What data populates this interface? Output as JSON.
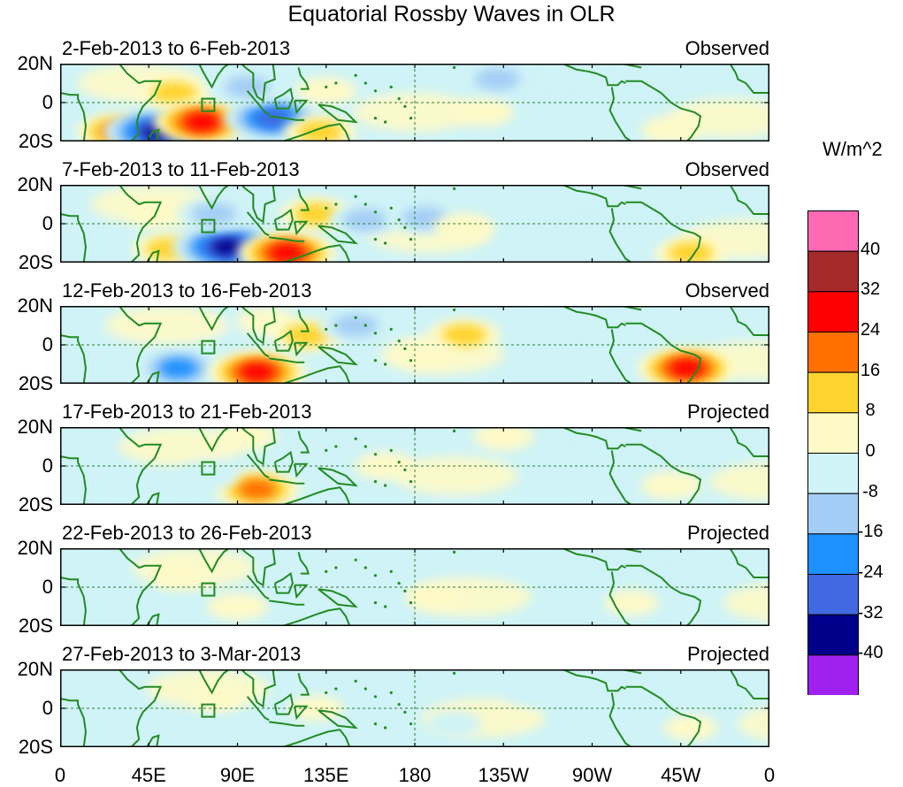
{
  "chart_data": {
    "type": "heatmap",
    "title": "Equatorial Rossby Waves in OLR",
    "colorbar_label": "W/m^2",
    "colorbar": {
      "levels": [
        -40,
        -32,
        -24,
        -16,
        -8,
        0,
        8,
        16,
        24,
        32,
        40
      ],
      "colors": [
        "#a020f0",
        "#00008b",
        "#4169e1",
        "#1e90ff",
        "#a4cdf5",
        "#cff3f7",
        "#fefac8",
        "#ffd42e",
        "#ff7000",
        "#ff0000",
        "#a52a2a",
        "#ff69b4"
      ]
    },
    "x_ticks": [
      "0",
      "45E",
      "90E",
      "135E",
      "180",
      "135W",
      "90W",
      "45W",
      "0"
    ],
    "y_ticks": [
      "20N",
      "0",
      "20S"
    ],
    "panels": [
      {
        "date_range": "2-Feb-2013 to 6-Feb-2013",
        "status": "Observed",
        "anomalies": [
          {
            "lon": 30,
            "lat": -15,
            "value": 24
          },
          {
            "lon": 50,
            "lat": -15,
            "value": -40
          },
          {
            "lon": 58,
            "lat": 5,
            "value": 16
          },
          {
            "lon": 72,
            "lat": -10,
            "value": 32
          },
          {
            "lon": 108,
            "lat": -8,
            "value": -32
          },
          {
            "lon": 95,
            "lat": 8,
            "value": -16
          },
          {
            "lon": 132,
            "lat": -15,
            "value": 16
          },
          {
            "lon": 135,
            "lat": 6,
            "value": 8
          },
          {
            "lon": 222,
            "lat": 12,
            "value": -16
          },
          {
            "lon": 215,
            "lat": -5,
            "value": 8
          },
          {
            "lon": 310,
            "lat": -14,
            "value": 8
          },
          {
            "lon": 280,
            "lat": -4,
            "value": -8
          }
        ]
      },
      {
        "date_range": "7-Feb-2013 to 11-Feb-2013",
        "status": "Observed",
        "anomalies": [
          {
            "lon": 50,
            "lat": 5,
            "value": 8
          },
          {
            "lon": 55,
            "lat": -13,
            "value": 16
          },
          {
            "lon": 85,
            "lat": -12,
            "value": -40
          },
          {
            "lon": 78,
            "lat": 5,
            "value": -16
          },
          {
            "lon": 115,
            "lat": -15,
            "value": 32
          },
          {
            "lon": 130,
            "lat": 5,
            "value": 16
          },
          {
            "lon": 155,
            "lat": 2,
            "value": -16
          },
          {
            "lon": 185,
            "lat": 3,
            "value": -16
          },
          {
            "lon": 205,
            "lat": -2,
            "value": 8
          },
          {
            "lon": 320,
            "lat": -15,
            "value": 16
          },
          {
            "lon": 290,
            "lat": -5,
            "value": -8
          }
        ]
      },
      {
        "date_range": "12-Feb-2013 to 16-Feb-2013",
        "status": "Observed",
        "anomalies": [
          {
            "lon": 60,
            "lat": -12,
            "value": -24
          },
          {
            "lon": 100,
            "lat": -14,
            "value": 32
          },
          {
            "lon": 105,
            "lat": 12,
            "value": 8
          },
          {
            "lon": 125,
            "lat": 5,
            "value": 16
          },
          {
            "lon": 150,
            "lat": 10,
            "value": -16
          },
          {
            "lon": 205,
            "lat": 5,
            "value": 16
          },
          {
            "lon": 185,
            "lat": -5,
            "value": 8
          },
          {
            "lon": 318,
            "lat": -12,
            "value": 32
          },
          {
            "lon": 280,
            "lat": 8,
            "value": -8
          }
        ]
      },
      {
        "date_range": "17-Feb-2013 to 21-Feb-2013",
        "status": "Projected",
        "anomalies": [
          {
            "lon": 100,
            "lat": -12,
            "value": 24
          },
          {
            "lon": 95,
            "lat": 15,
            "value": 8
          },
          {
            "lon": 75,
            "lat": -5,
            "value": -8
          },
          {
            "lon": 120,
            "lat": 5,
            "value": -8
          },
          {
            "lon": 165,
            "lat": 0,
            "value": 8
          },
          {
            "lon": 225,
            "lat": 15,
            "value": 8
          },
          {
            "lon": 310,
            "lat": -10,
            "value": 8
          }
        ]
      },
      {
        "date_range": "22-Feb-2013 to 26-Feb-2013",
        "status": "Projected",
        "anomalies": [
          {
            "lon": 90,
            "lat": -10,
            "value": 8
          },
          {
            "lon": 60,
            "lat": 5,
            "value": 4
          },
          {
            "lon": 160,
            "lat": 2,
            "value": -4
          },
          {
            "lon": 190,
            "lat": -5,
            "value": 4
          },
          {
            "lon": 290,
            "lat": -8,
            "value": 4
          }
        ]
      },
      {
        "date_range": "27-Feb-2013 to 3-Mar-2013",
        "status": "Projected",
        "anomalies": [
          {
            "lon": 80,
            "lat": 5,
            "value": 4
          },
          {
            "lon": 130,
            "lat": 0,
            "value": 4
          },
          {
            "lon": 200,
            "lat": -8,
            "value": -4
          },
          {
            "lon": 240,
            "lat": 8,
            "value": -4
          },
          {
            "lon": 320,
            "lat": -10,
            "value": 4
          }
        ]
      }
    ]
  }
}
